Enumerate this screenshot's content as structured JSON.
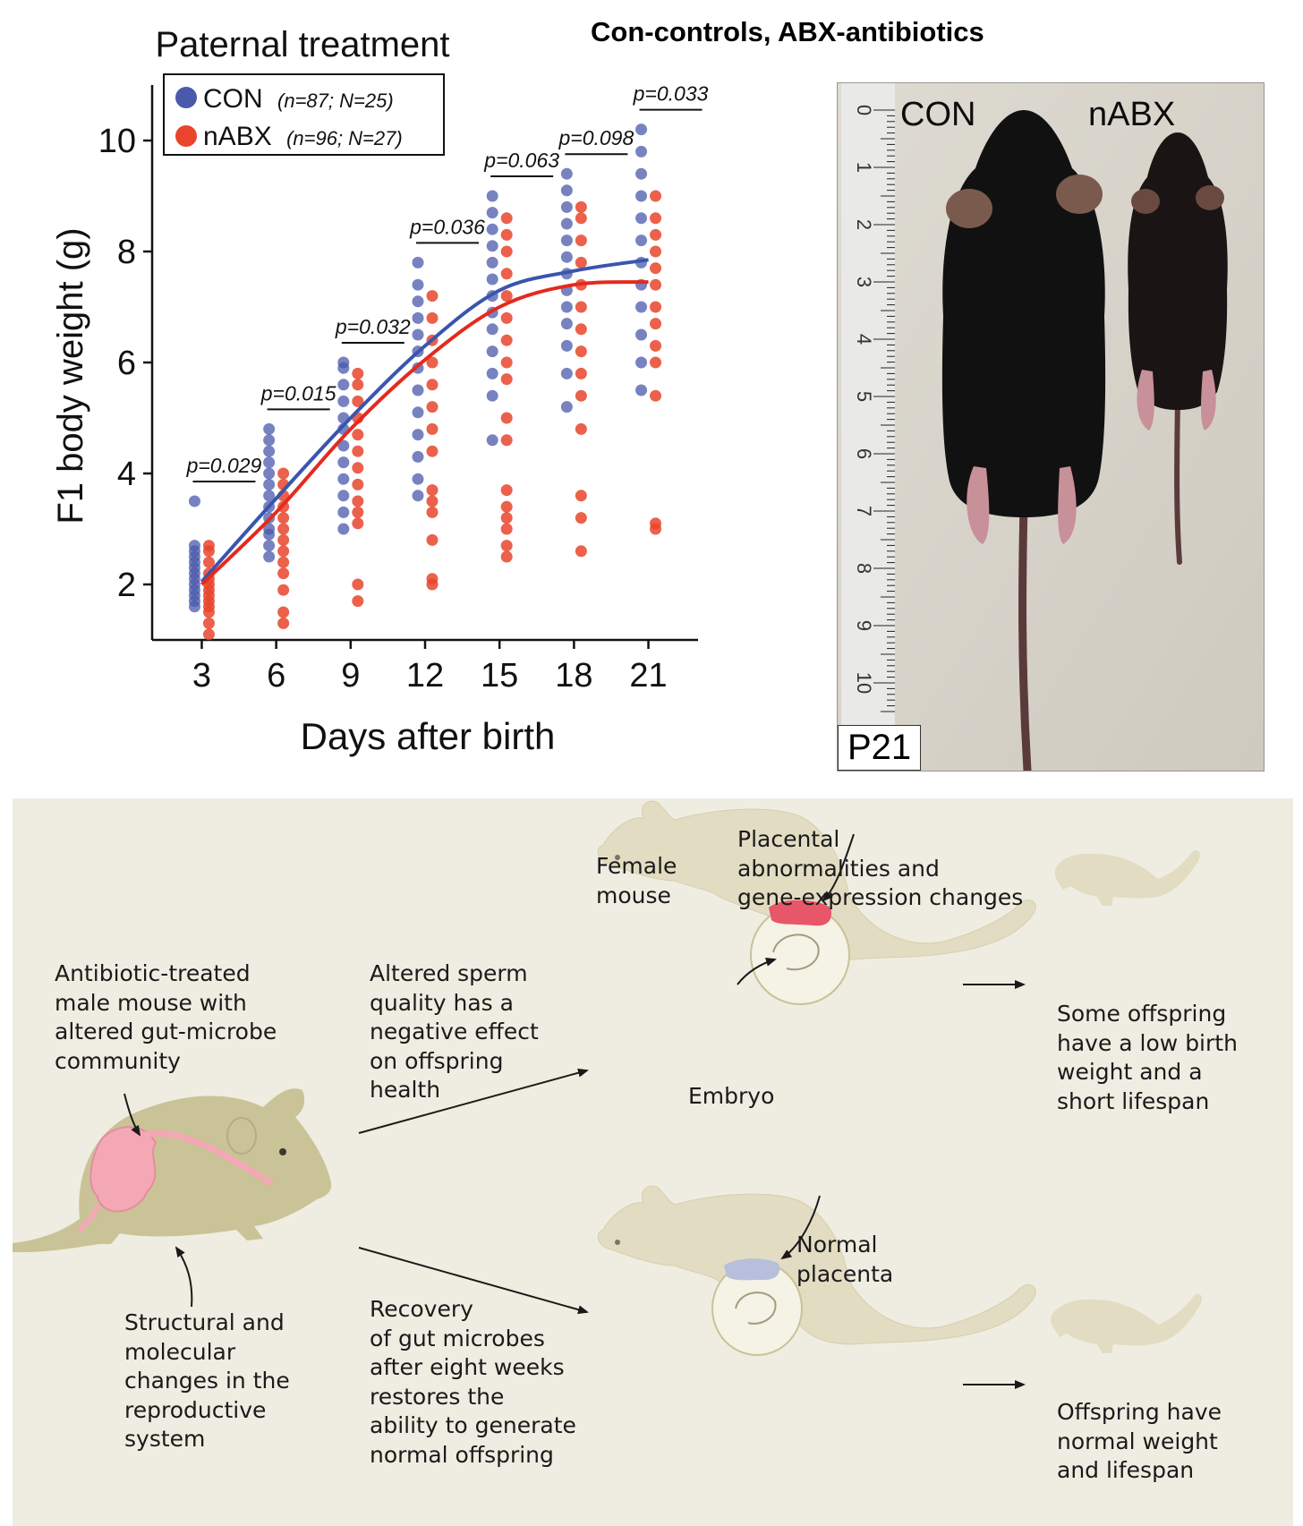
{
  "header": {
    "title": "Con-controls, ABX-antibiotics"
  },
  "chart_data": {
    "type": "scatter",
    "title": "Paternal treatment",
    "xlabel": "Days after birth",
    "ylabel": "F1 body weight (g)",
    "x": [
      3,
      6,
      9,
      12,
      15,
      18,
      21
    ],
    "x_tick_labels": [
      "3",
      "6",
      "9",
      "12",
      "15",
      "18",
      "21"
    ],
    "y_ticks": [
      2,
      4,
      6,
      8,
      10
    ],
    "y_tick_labels": [
      "2",
      "4",
      "6",
      "8",
      "10"
    ],
    "xlim": [
      1,
      23
    ],
    "ylim": [
      1,
      11
    ],
    "legend_placement": "top-left",
    "series": [
      {
        "name": "CON",
        "legend_note": "(n=87; N=25)",
        "color": "#4a5aab",
        "points": [
          [
            1.6,
            1.7,
            1.8,
            1.9,
            2.0,
            2.1,
            2.2,
            2.3,
            2.4,
            2.5,
            2.6,
            2.7,
            3.5
          ],
          [
            2.5,
            2.7,
            2.9,
            3.0,
            3.2,
            3.4,
            3.6,
            3.8,
            4.0,
            4.2,
            4.4,
            4.6,
            4.8
          ],
          [
            3.0,
            3.3,
            3.6,
            3.9,
            4.2,
            4.5,
            4.8,
            5.0,
            5.3,
            5.6,
            5.9,
            6.0
          ],
          [
            3.6,
            3.9,
            4.3,
            4.7,
            5.1,
            5.5,
            5.9,
            6.2,
            6.5,
            6.8,
            7.1,
            7.4,
            7.8
          ],
          [
            4.6,
            5.4,
            5.8,
            6.2,
            6.6,
            6.9,
            7.2,
            7.5,
            7.8,
            8.1,
            8.4,
            8.7,
            9.0
          ],
          [
            5.2,
            5.8,
            6.3,
            6.7,
            7.0,
            7.3,
            7.6,
            7.9,
            8.2,
            8.5,
            8.8,
            9.1,
            9.4
          ],
          [
            5.5,
            6.0,
            6.5,
            7.0,
            7.4,
            7.8,
            8.2,
            8.6,
            9.0,
            9.4,
            9.8,
            10.2
          ]
        ],
        "fit": [
          2.05,
          3.55,
          5.0,
          6.3,
          7.3,
          7.65,
          7.85
        ]
      },
      {
        "name": "nABX",
        "legend_note": "(n=96; N=27)",
        "color": "#e8452c",
        "points": [
          [
            1.1,
            1.3,
            1.5,
            1.6,
            1.7,
            1.8,
            1.9,
            2.0,
            2.1,
            2.2,
            2.4,
            2.6,
            2.7
          ],
          [
            1.3,
            1.5,
            1.9,
            2.2,
            2.4,
            2.6,
            2.8,
            3.0,
            3.2,
            3.4,
            3.6,
            3.8,
            4.0
          ],
          [
            1.7,
            2.0,
            3.1,
            3.3,
            3.5,
            3.8,
            4.1,
            4.4,
            4.7,
            5.0,
            5.3,
            5.6,
            5.8
          ],
          [
            2.0,
            2.1,
            2.8,
            3.3,
            3.5,
            3.7,
            4.4,
            4.8,
            5.2,
            5.6,
            6.0,
            6.4,
            6.8,
            7.2
          ],
          [
            2.5,
            2.7,
            3.0,
            3.2,
            3.4,
            3.7,
            4.6,
            5.0,
            5.7,
            6.0,
            6.4,
            6.8,
            7.2,
            7.6,
            8.0,
            8.3,
            8.6
          ],
          [
            2.6,
            3.2,
            3.6,
            4.8,
            5.4,
            5.8,
            6.2,
            6.6,
            7.0,
            7.4,
            7.8,
            8.2,
            8.6,
            8.8
          ],
          [
            3.0,
            3.1,
            5.4,
            6.0,
            6.3,
            6.7,
            7.0,
            7.4,
            7.7,
            8.0,
            8.3,
            8.6,
            9.0
          ]
        ],
        "fit": [
          2.0,
          3.3,
          4.8,
          6.05,
          7.0,
          7.4,
          7.45
        ]
      }
    ],
    "p_values": [
      "p=0.029",
      "p=0.015",
      "p=0.032",
      "p=0.036",
      "p=0.063",
      "p=0.098",
      "p=0.033"
    ]
  },
  "photo": {
    "labels": {
      "left": "CON",
      "right": "nABX"
    },
    "ruler_numbers": [
      "0",
      "1",
      "2",
      "3",
      "4",
      "5",
      "6",
      "7",
      "8",
      "9",
      "10"
    ],
    "age_label": "P21"
  },
  "diagram": {
    "male_caption": "Antibiotic-treated\nmale mouse with\naltered gut-microbe\ncommunity",
    "reproductive_caption": "Structural and\nmolecular\nchanges in the\nreproductive\nsystem",
    "sperm_caption": "Altered sperm\nquality has a\nnegative effect\non offspring\nhealth",
    "recovery_caption": "Recovery\nof gut microbes\nafter eight weeks\nrestores the\nability to generate\nnormal offspring",
    "female_label": "Female\nmouse",
    "placental_label": "Placental\nabnormalities and\ngene-expression changes",
    "embryo_label": "Embryo",
    "low_outcome": "Some offspring\nhave a low birth\nweight and a\nshort lifespan",
    "normal_placenta_label": "Normal\nplacenta",
    "normal_outcome": "Offspring have\nnormal weight\nand lifespan",
    "colors": {
      "mouse_male": "#c9c397",
      "mouse_faded": "#e2dcc2",
      "gut": "#f4a8b5",
      "abnormal_placenta": "#e8566a",
      "normal_placenta": "#b7bfdc"
    }
  }
}
